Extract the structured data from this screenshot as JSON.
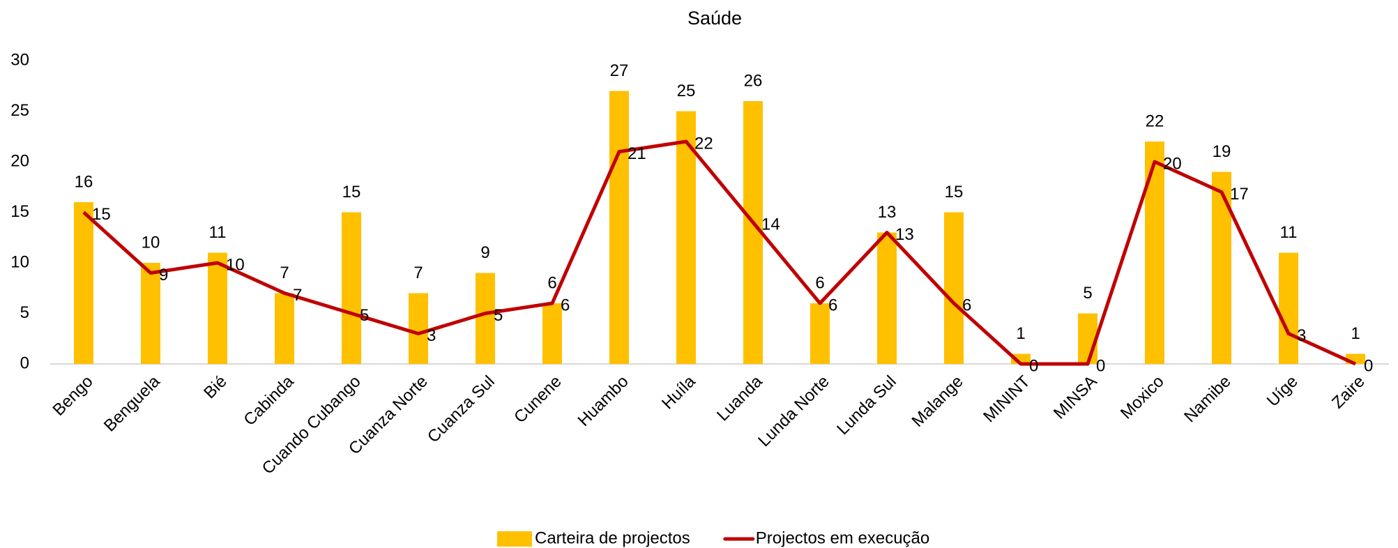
{
  "chart_data": {
    "type": "bar+line",
    "title": "Saúde",
    "categories": [
      "Bengo",
      "Benguela",
      "Bié",
      "Cabinda",
      "Cuando Cubango",
      "Cuanza Norte",
      "Cuanza Sul",
      "Cunene",
      "Huambo",
      "Huíla",
      "Luanda",
      "Lunda Norte",
      "Lunda Sul",
      "Malange",
      "MININT",
      "MINSA",
      "Moxico",
      "Namibe",
      "Uíge",
      "Zaire"
    ],
    "series": [
      {
        "name": "Carteira de projectos",
        "type": "bar",
        "color": "#FFC000",
        "values": [
          16,
          10,
          11,
          7,
          15,
          7,
          9,
          6,
          27,
          25,
          26,
          6,
          13,
          15,
          1,
          5,
          22,
          19,
          11,
          1
        ]
      },
      {
        "name": "Projectos em execução",
        "type": "line",
        "color": "#C00000",
        "values": [
          15,
          9,
          10,
          7,
          5,
          3,
          5,
          6,
          21,
          22,
          14,
          6,
          13,
          6,
          0,
          0,
          20,
          17,
          3,
          0
        ]
      }
    ],
    "ylim": [
      0,
      30
    ],
    "yticks": [
      0,
      5,
      10,
      15,
      20,
      25,
      30
    ],
    "legend": "bottom"
  }
}
